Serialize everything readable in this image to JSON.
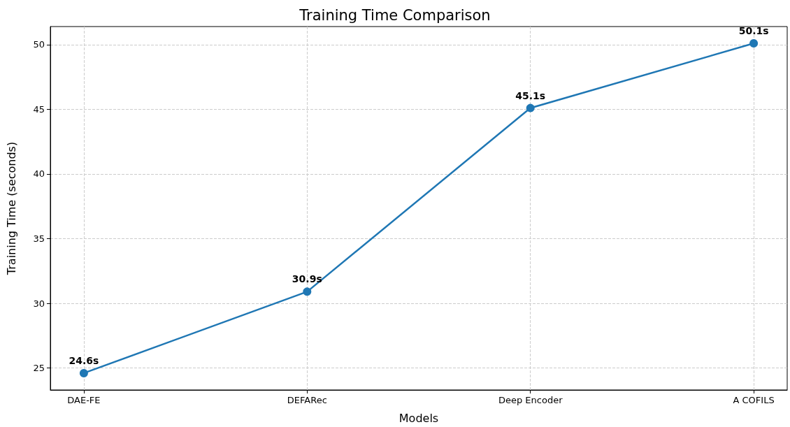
{
  "chart_data": {
    "type": "line",
    "title": "Training Time Comparison",
    "xlabel": "Models",
    "ylabel": "Training Time (seconds)",
    "categories": [
      "DAE-FE",
      "DEFARec",
      "Deep Encoder",
      "A COFILS"
    ],
    "series": [
      {
        "color": "#1f77b4",
        "values": [
          24.6,
          30.9,
          45.1,
          50.1
        ],
        "value_labels": [
          "24.6s",
          "30.9s",
          "45.1s",
          "50.1s"
        ]
      }
    ],
    "ylim": [
      23.3,
      51.4
    ],
    "yticks": [
      25,
      30,
      35,
      40,
      45,
      50
    ],
    "grid": true,
    "marker": "circle",
    "line_style": "solid"
  }
}
